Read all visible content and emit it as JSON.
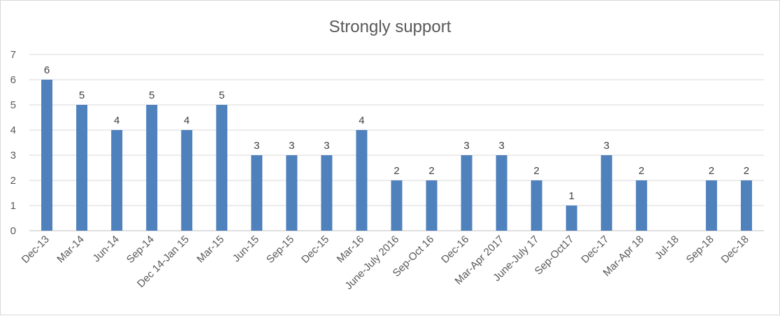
{
  "chart_data": {
    "type": "bar",
    "title": "Strongly support",
    "xlabel": "",
    "ylabel": "",
    "ylim": [
      0,
      7
    ],
    "yticks": [
      0,
      1,
      2,
      3,
      4,
      5,
      6,
      7
    ],
    "grid": true,
    "legend": "none",
    "bar_color": "#4f81bd",
    "categories": [
      "Dec-13",
      "Mar-14",
      "Jun-14",
      "Sep-14",
      "Dec 14-Jan 15",
      "Mar-15",
      "Jun-15",
      "Sep-15",
      "Dec-15",
      "Mar-16",
      "June-July 2016",
      "Sep-Oct 16",
      "Dec-16",
      "Mar-Apr 2017",
      "June-July 17",
      "Sep-Oct17",
      "Dec-17",
      "Mar-Apr 18",
      "Jul-18",
      "Sep-18",
      "Dec-18"
    ],
    "values": [
      6,
      5,
      4,
      5,
      4,
      5,
      3,
      3,
      3,
      4,
      2,
      2,
      3,
      3,
      2,
      1,
      3,
      2,
      null,
      2,
      2
    ],
    "data_labels": true
  }
}
